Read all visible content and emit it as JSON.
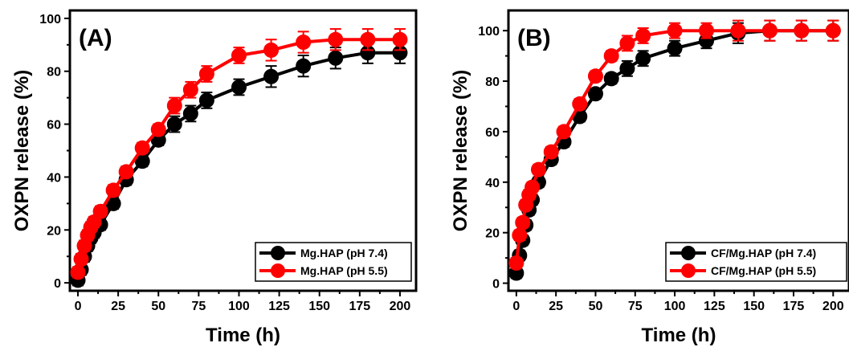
{
  "chart_data": [
    {
      "type": "line",
      "panel_label": "(A)",
      "xlabel": "Time (h)",
      "ylabel": "OXPN release (%)",
      "xlim": [
        -5,
        210
      ],
      "ylim": [
        -3,
        103
      ],
      "xticks": [
        0,
        25,
        50,
        75,
        100,
        125,
        150,
        175,
        200
      ],
      "yticks": [
        0,
        20,
        40,
        60,
        80,
        100
      ],
      "legend_position": "bottom-right",
      "error_bars": true,
      "series": [
        {
          "name": "Mg.HAP (pH 7.4)",
          "color": "#000000",
          "x": [
            0,
            2,
            4,
            6,
            8,
            10,
            14,
            22,
            30,
            40,
            50,
            60,
            70,
            80,
            100,
            120,
            140,
            160,
            180,
            200
          ],
          "y": [
            1,
            5,
            10,
            14,
            17,
            19,
            22,
            30,
            39,
            46,
            54,
            60,
            64,
            69,
            74,
            78,
            82,
            85,
            87,
            87
          ],
          "err": [
            2,
            2,
            2,
            2,
            2,
            2,
            2,
            2,
            2,
            2,
            2,
            3,
            3,
            3,
            3,
            4,
            4,
            4,
            4,
            4
          ]
        },
        {
          "name": "Mg.HAP (pH 5.5)",
          "color": "#ff0000",
          "x": [
            0,
            2,
            4,
            6,
            8,
            10,
            14,
            22,
            30,
            40,
            50,
            60,
            70,
            80,
            100,
            120,
            140,
            160,
            180,
            200
          ],
          "y": [
            4,
            9,
            14,
            18,
            21,
            23,
            27,
            35,
            42,
            51,
            58,
            67,
            73,
            79,
            86,
            88,
            91,
            92,
            92,
            92
          ],
          "err": [
            2,
            2,
            2,
            2,
            2,
            2,
            2,
            2,
            2,
            2,
            2,
            3,
            3,
            3,
            3,
            4,
            4,
            4,
            4,
            4
          ]
        }
      ]
    },
    {
      "type": "line",
      "panel_label": "(B)",
      "xlabel": "Time (h)",
      "ylabel": "OXPN release (%)",
      "xlim": [
        -5,
        210
      ],
      "ylim": [
        -3,
        108
      ],
      "xticks": [
        0,
        25,
        50,
        75,
        100,
        125,
        150,
        175,
        200
      ],
      "yticks": [
        0,
        20,
        40,
        60,
        80,
        100
      ],
      "legend_position": "bottom-right",
      "error_bars": true,
      "series": [
        {
          "name": "CF/Mg.HAP (pH 7.4)",
          "color": "#000000",
          "x": [
            0,
            2,
            4,
            6,
            8,
            10,
            14,
            22,
            30,
            40,
            50,
            60,
            70,
            80,
            100,
            120,
            140,
            160,
            180,
            200
          ],
          "y": [
            4,
            11,
            17,
            23,
            29,
            33,
            40,
            49,
            56,
            66,
            75,
            81,
            85,
            89,
            93,
            96,
            99,
            100,
            100,
            100
          ],
          "err": [
            2,
            2,
            2,
            2,
            2,
            2,
            2,
            2,
            2,
            2,
            2,
            2,
            3,
            3,
            3,
            3,
            4,
            4,
            4,
            4
          ]
        },
        {
          "name": "CF/Mg.HAP (pH 5.5)",
          "color": "#ff0000",
          "x": [
            0,
            2,
            4,
            6,
            8,
            10,
            14,
            22,
            30,
            40,
            50,
            60,
            70,
            80,
            100,
            120,
            140,
            160,
            180,
            200
          ],
          "y": [
            8,
            19,
            24,
            31,
            35,
            38,
            45,
            52,
            60,
            71,
            82,
            90,
            95,
            98,
            100,
            100,
            100,
            100,
            100,
            100
          ],
          "err": [
            2,
            2,
            2,
            2,
            2,
            2,
            2,
            2,
            2,
            2,
            2,
            2,
            3,
            3,
            3,
            3,
            4,
            4,
            4,
            4
          ]
        }
      ]
    }
  ]
}
